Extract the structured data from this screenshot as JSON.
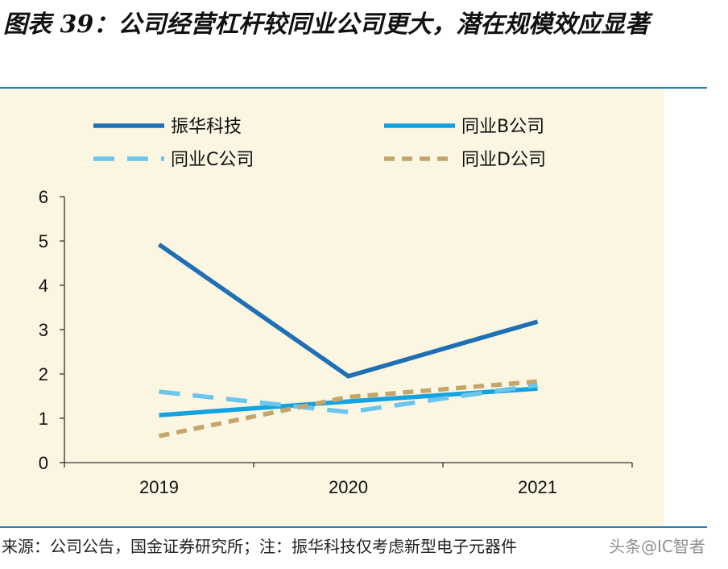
{
  "title": "图表 39：公司经营杠杆较同业公司更大，潜在规模效应显著",
  "source": "来源：公司公告，国金证券研究所；注：振华科技仅考虑新型电子元器件",
  "watermark": "头条@IC智者",
  "colors": {
    "rule": "#2c7fb8",
    "panel_bg": "#fbf6e2",
    "axis": "#333333"
  },
  "chart_data": {
    "type": "line",
    "categories": [
      "2019",
      "2020",
      "2021"
    ],
    "ylim": [
      0,
      6
    ],
    "yticks": [
      0,
      1,
      2,
      3,
      4,
      5,
      6
    ],
    "grid": false,
    "legend_position": "top",
    "series": [
      {
        "name": "振华科技",
        "values": [
          4.92,
          1.95,
          3.18
        ],
        "color": "#1f6fb4",
        "dash": "solid"
      },
      {
        "name": "同业B公司",
        "values": [
          1.07,
          1.38,
          1.67
        ],
        "color": "#13a3e0",
        "dash": "solid"
      },
      {
        "name": "同业C公司",
        "values": [
          1.6,
          1.14,
          1.75
        ],
        "color": "#6cc5ee",
        "dash": "long"
      },
      {
        "name": "同业D公司",
        "values": [
          0.6,
          1.48,
          1.83
        ],
        "color": "#c4a56a",
        "dash": "short"
      }
    ]
  }
}
